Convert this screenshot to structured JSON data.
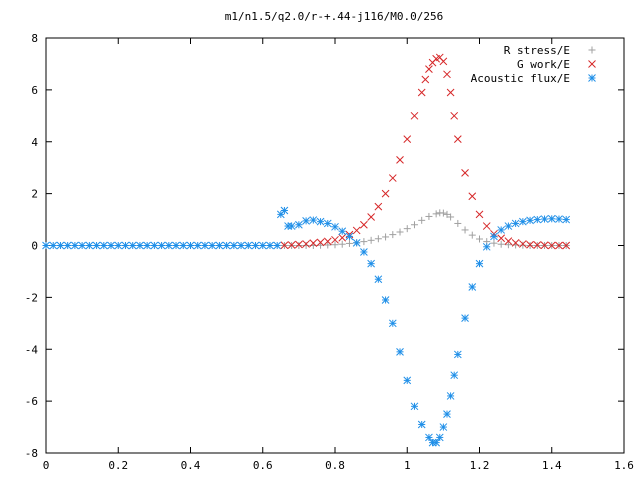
{
  "chart_data": {
    "type": "scatter",
    "title": "m1/n1.5/q2.0/r-+.44-j116/M0.0/256",
    "xlabel": "",
    "ylabel": "",
    "xlim": [
      0,
      1.6
    ],
    "ylim": [
      -8,
      8
    ],
    "x_ticks": [
      "0",
      "0.2",
      "0.4",
      "0.6",
      "0.8",
      "1",
      "1.2",
      "1.4",
      "1.6"
    ],
    "y_ticks": [
      "-8",
      "-6",
      "-4",
      "-2",
      "0",
      "2",
      "4",
      "6",
      "8"
    ],
    "grid": false,
    "legend_position": "top-right",
    "series": [
      {
        "name": "R stress/E",
        "marker": "+",
        "color": "#a0a0a0",
        "x": [
          0.66,
          0.68,
          0.7,
          0.72,
          0.74,
          0.76,
          0.78,
          0.8,
          0.82,
          0.84,
          0.86,
          0.88,
          0.9,
          0.92,
          0.94,
          0.96,
          0.98,
          1.0,
          1.02,
          1.04,
          1.06,
          1.08,
          1.09,
          1.1,
          1.11,
          1.12,
          1.14,
          1.16,
          1.18,
          1.2,
          1.22,
          1.24,
          1.26,
          1.28,
          1.3,
          1.32,
          1.34,
          1.36,
          1.38,
          1.4,
          1.42,
          1.44
        ],
        "y": [
          0,
          0,
          0,
          0,
          0,
          0.01,
          0.02,
          0.03,
          0.05,
          0.08,
          0.11,
          0.15,
          0.2,
          0.26,
          0.33,
          0.42,
          0.52,
          0.65,
          0.8,
          0.97,
          1.12,
          1.22,
          1.26,
          1.25,
          1.2,
          1.1,
          0.85,
          0.6,
          0.4,
          0.25,
          0.15,
          0.09,
          0.05,
          0.03,
          0.02,
          0.01,
          0,
          0,
          0,
          0,
          0,
          0
        ]
      },
      {
        "name": "G work/E",
        "marker": "x",
        "color": "#d62728",
        "x": [
          0.66,
          0.68,
          0.7,
          0.72,
          0.74,
          0.76,
          0.78,
          0.8,
          0.82,
          0.84,
          0.86,
          0.88,
          0.9,
          0.92,
          0.94,
          0.96,
          0.98,
          1.0,
          1.02,
          1.04,
          1.05,
          1.06,
          1.07,
          1.08,
          1.09,
          1.1,
          1.11,
          1.12,
          1.13,
          1.14,
          1.16,
          1.18,
          1.2,
          1.22,
          1.24,
          1.26,
          1.28,
          1.3,
          1.32,
          1.34,
          1.36,
          1.38,
          1.4,
          1.42,
          1.44
        ],
        "y": [
          0.01,
          0.02,
          0.04,
          0.06,
          0.09,
          0.12,
          0.16,
          0.22,
          0.3,
          0.42,
          0.58,
          0.8,
          1.1,
          1.5,
          2.0,
          2.6,
          3.3,
          4.1,
          5.0,
          5.9,
          6.4,
          6.8,
          7.05,
          7.2,
          7.25,
          7.1,
          6.6,
          5.9,
          5.0,
          4.1,
          2.8,
          1.9,
          1.2,
          0.75,
          0.45,
          0.28,
          0.17,
          0.1,
          0.06,
          0.03,
          0.02,
          0.01,
          0,
          0,
          0
        ]
      },
      {
        "name": "Acoustic flux/E",
        "marker": "*",
        "color": "#1f8fe8",
        "x": [
          0.0,
          0.02,
          0.04,
          0.06,
          0.08,
          0.1,
          0.12,
          0.14,
          0.16,
          0.18,
          0.2,
          0.22,
          0.24,
          0.26,
          0.28,
          0.3,
          0.32,
          0.34,
          0.36,
          0.38,
          0.4,
          0.42,
          0.44,
          0.46,
          0.48,
          0.5,
          0.52,
          0.54,
          0.56,
          0.58,
          0.6,
          0.62,
          0.64,
          0.65,
          0.66,
          0.67,
          0.68,
          0.7,
          0.72,
          0.74,
          0.76,
          0.78,
          0.8,
          0.82,
          0.84,
          0.86,
          0.88,
          0.9,
          0.92,
          0.94,
          0.96,
          0.98,
          1.0,
          1.02,
          1.04,
          1.06,
          1.07,
          1.08,
          1.09,
          1.1,
          1.11,
          1.12,
          1.13,
          1.14,
          1.16,
          1.18,
          1.2,
          1.22,
          1.24,
          1.26,
          1.28,
          1.3,
          1.32,
          1.34,
          1.36,
          1.38,
          1.4,
          1.42,
          1.44
        ],
        "y": [
          0,
          0,
          0,
          0,
          0,
          0,
          0,
          0,
          0,
          0,
          0,
          0,
          0,
          0,
          0,
          0,
          0,
          0,
          0,
          0,
          0,
          0,
          0,
          0,
          0,
          0,
          0,
          0,
          0,
          0,
          0,
          0,
          0,
          1.2,
          1.35,
          0.75,
          0.75,
          0.8,
          0.95,
          0.98,
          0.92,
          0.85,
          0.72,
          0.55,
          0.35,
          0.1,
          -0.25,
          -0.7,
          -1.3,
          -2.1,
          -3.0,
          -4.1,
          -5.2,
          -6.2,
          -6.9,
          -7.4,
          -7.6,
          -7.6,
          -7.4,
          -7.0,
          -6.5,
          -5.8,
          -5.0,
          -4.2,
          -2.8,
          -1.6,
          -0.7,
          -0.05,
          0.35,
          0.6,
          0.75,
          0.85,
          0.92,
          0.97,
          1.0,
          1.02,
          1.03,
          1.02,
          1.0
        ]
      }
    ]
  }
}
